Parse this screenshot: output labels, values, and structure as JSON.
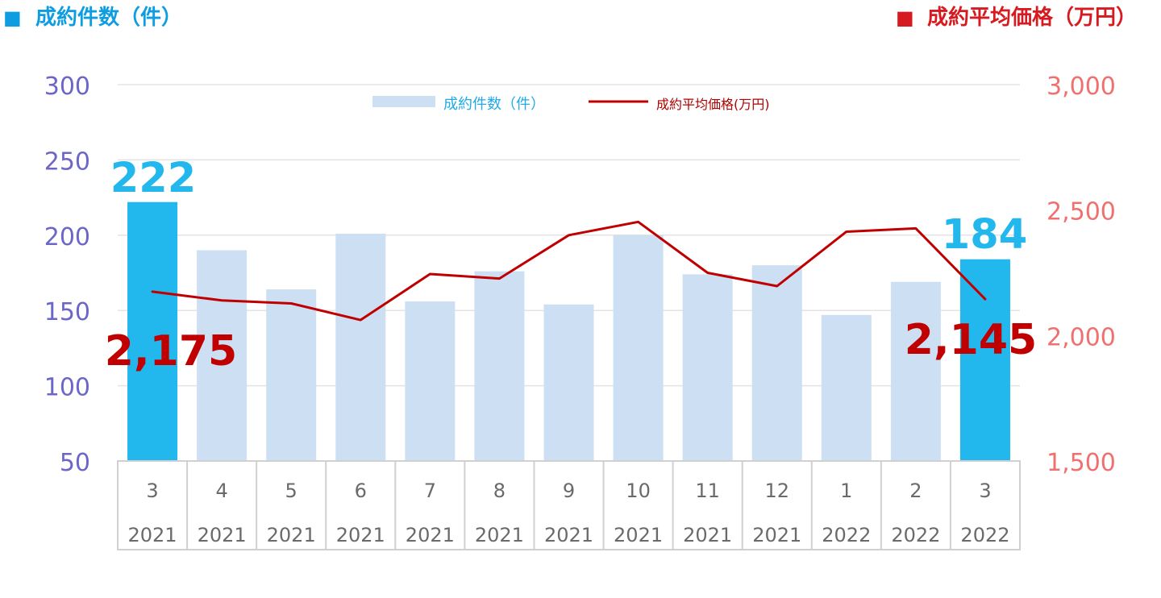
{
  "colors": {
    "bar_regular": "#cddff3",
    "bar_highlight": "#22b8ee",
    "line": "#c00000",
    "left_axis_text": "#6b66c8",
    "right_axis_text": "#f07070",
    "left_title": "#0d9de0",
    "right_title": "#d71a20",
    "legend_count_text": "#21a9e8",
    "legend_price_text": "#b00000",
    "grid": "#e3e3e3",
    "axis_box": "#d0d0d0",
    "category_text": "#6a6a6a"
  },
  "header": {
    "left_marker": "■",
    "left_title": "成約件数（件）",
    "right_marker": "■",
    "right_title": "成約平均価格（万円）"
  },
  "legend": {
    "count_label": "成約件数（件）",
    "price_label": "成約平均価格(万円)"
  },
  "chart_data": {
    "type": "bar",
    "categories": [
      {
        "month": "3",
        "year": "2021"
      },
      {
        "month": "4",
        "year": "2021"
      },
      {
        "month": "5",
        "year": "2021"
      },
      {
        "month": "6",
        "year": "2021"
      },
      {
        "month": "7",
        "year": "2021"
      },
      {
        "month": "8",
        "year": "2021"
      },
      {
        "month": "9",
        "year": "2021"
      },
      {
        "month": "10",
        "year": "2021"
      },
      {
        "month": "11",
        "year": "2021"
      },
      {
        "month": "12",
        "year": "2021"
      },
      {
        "month": "1",
        "year": "2022"
      },
      {
        "month": "2",
        "year": "2022"
      },
      {
        "month": "3",
        "year": "2022"
      }
    ],
    "series": [
      {
        "name": "成約件数（件）",
        "type": "bar",
        "axis": "left",
        "values": [
          222,
          190,
          164,
          201,
          156,
          176,
          154,
          200,
          174,
          180,
          147,
          169,
          184
        ],
        "highlight": [
          true,
          false,
          false,
          false,
          false,
          false,
          false,
          false,
          false,
          false,
          false,
          false,
          true
        ]
      },
      {
        "name": "成約平均価格(万円)",
        "type": "line",
        "axis": "right",
        "values": [
          2175,
          2140,
          2128,
          2062,
          2245,
          2227,
          2400,
          2453,
          2250,
          2197,
          2414,
          2427,
          2145
        ]
      }
    ],
    "left_axis": {
      "min": 50,
      "max": 300,
      "ticks": [
        50,
        100,
        150,
        200,
        250,
        300
      ],
      "tick_labels": [
        "50",
        "100",
        "150",
        "200",
        "250",
        "300"
      ]
    },
    "right_axis": {
      "min": 1500,
      "max": 3000,
      "ticks": [
        1500,
        2000,
        2500,
        3000
      ],
      "tick_labels": [
        "1,500",
        "2,000",
        "2,500",
        "3,000"
      ]
    },
    "data_labels": {
      "first_count": "222",
      "last_count": "184",
      "first_price": "2,175",
      "last_price": "2,145"
    },
    "grid": true,
    "legend_position": "top-center"
  }
}
